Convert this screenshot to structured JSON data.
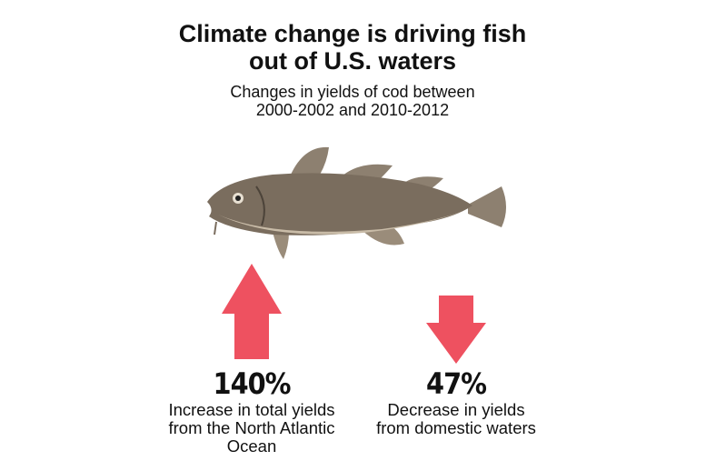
{
  "header": {
    "title": [
      "Climate change is driving fish",
      "out of U.S. waters"
    ],
    "subtitle": [
      "Changes in yields of cod between",
      "2000-2002 and 2010-2012"
    ]
  },
  "stats": [
    {
      "value": "140%",
      "label": [
        "Increase in total yields",
        "from the North Atlantic",
        "Ocean"
      ]
    },
    {
      "value": "47%",
      "label": [
        "Decrease in yields",
        "from domestic waters"
      ]
    }
  ]
}
